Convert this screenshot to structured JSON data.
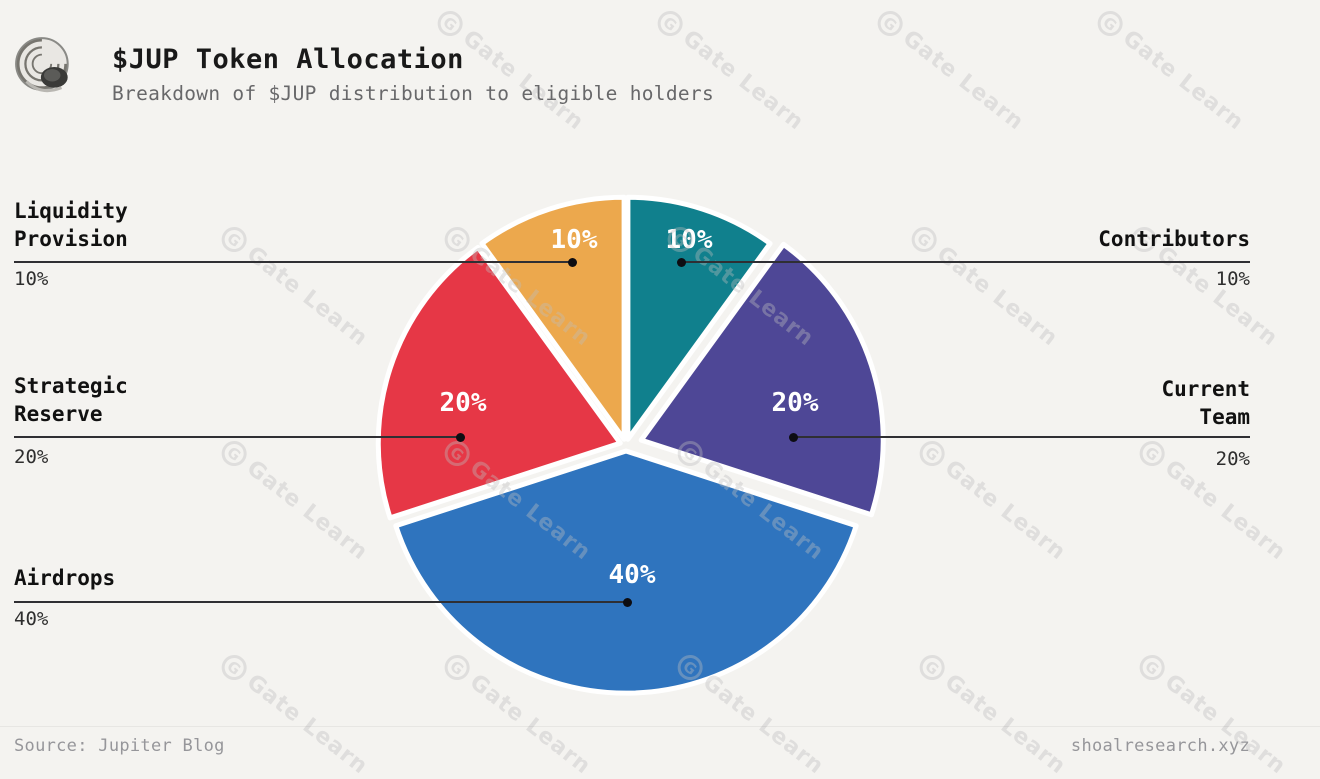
{
  "header": {
    "title": "$JUP Token Allocation",
    "subtitle": "Breakdown of $JUP distribution to eligible holders",
    "logo_icon": "shell-icon"
  },
  "footer": {
    "source": "Source: Jupiter Blog",
    "site": "shoalresearch.xyz"
  },
  "watermark": {
    "text": "Gate Learn",
    "logo_letter": "G"
  },
  "chart_data": {
    "type": "pie",
    "title": "$JUP Token Allocation",
    "unit": "%",
    "direction": "clockwise",
    "start_angle_deg": 0,
    "legend_position": "callout-labels",
    "grid": false,
    "background_color": "#f4f3f0",
    "slice_gap_color": "#ffffff",
    "segments": [
      {
        "label": "Contributors",
        "value": 10,
        "display": "10%",
        "color": "#10808D",
        "exploded": false
      },
      {
        "label": "Current Team",
        "value": 20,
        "display": "20%",
        "color": "#4E4796",
        "exploded": true
      },
      {
        "label": "Airdrops",
        "value": 40,
        "display": "40%",
        "color": "#2F74BE",
        "exploded": false
      },
      {
        "label": "Strategic Reserve",
        "value": 20,
        "display": "20%",
        "color": "#E63746",
        "exploded": false
      },
      {
        "label": "Liquidity Provision",
        "value": 10,
        "display": "10%",
        "color": "#ECA84D",
        "exploded": false
      }
    ]
  },
  "callouts": {
    "liquidity": {
      "name_lines": [
        "Liquidity",
        "Provision"
      ],
      "pct": "10%"
    },
    "contributors": {
      "name_lines": [
        "Contributors"
      ],
      "pct": "10%"
    },
    "strategic": {
      "name_lines": [
        "Strategic",
        "Reserve"
      ],
      "pct": "20%"
    },
    "team": {
      "name_lines": [
        "Current",
        "Team"
      ],
      "pct": "20%"
    },
    "airdrops": {
      "name_lines": [
        "Airdrops"
      ],
      "pct": "40%"
    }
  }
}
